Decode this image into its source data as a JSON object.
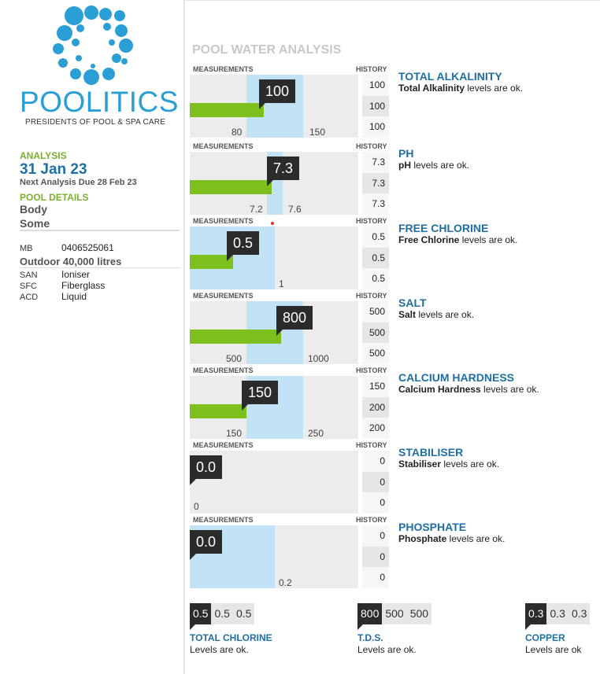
{
  "logo": {
    "wordmark": "POOLITICS",
    "tagline": "PRESIDENTS OF POOL & SPA CARE"
  },
  "sidebar": {
    "analysis_label": "ANALYSIS",
    "date": "31 Jan 23",
    "next_due": "Next Analysis Due 28 Feb 23",
    "pool_details_label": "POOL DETAILS",
    "name_line1": "Body",
    "name_line2": "Some",
    "mb_key": "MB",
    "mb_value": "0406525061",
    "pool_desc": "Outdoor 40,000 litres",
    "san_key": "SAN",
    "san_value": "Ioniser",
    "sfc_key": "SFC",
    "sfc_value": "Fiberglass",
    "acd_key": "ACD",
    "acd_value": "Liquid"
  },
  "section_title": "POOL WATER ANALYSIS",
  "headers": {
    "measurements": "MEASUREMENTS",
    "history": "HISTORY"
  },
  "rows": [
    {
      "title": "TOTAL ALKALINITY",
      "status_bold": "Total Alkalinity",
      "status_rest": " levels are ok.",
      "value": "100",
      "low": "80",
      "high": "150",
      "history": [
        "100",
        "100",
        "100"
      ]
    },
    {
      "title": "PH",
      "status_bold": "pH",
      "status_rest": " levels are ok.",
      "value": "7.3",
      "low": "7.2",
      "high": "7.6",
      "history": [
        "7.3",
        "7.3",
        "7.3"
      ]
    },
    {
      "title": "FREE CHLORINE",
      "status_bold": "Free Chlorine",
      "status_rest": " levels are ok.",
      "value": "0.5",
      "low": "",
      "high": "1",
      "history": [
        "0.5",
        "0.5",
        "0.5"
      ]
    },
    {
      "title": "SALT",
      "status_bold": "Salt",
      "status_rest": " levels are ok.",
      "value": "800",
      "low": "500",
      "high": "1000",
      "history": [
        "500",
        "500",
        "500"
      ]
    },
    {
      "title": "CALCIUM HARDNESS",
      "status_bold": "Calcium Hardness",
      "status_rest": " levels are ok.",
      "value": "150",
      "low": "150",
      "high": "250",
      "history": [
        "150",
        "200",
        "200"
      ]
    },
    {
      "title": "STABILISER",
      "status_bold": "Stabiliser",
      "status_rest": " levels are ok.",
      "value": "0.0",
      "low": "0",
      "high": "",
      "history": [
        "0",
        "0",
        "0"
      ]
    },
    {
      "title": "PHOSPHATE",
      "status_bold": "Phosphate",
      "status_rest": " levels are ok.",
      "value": "0.0",
      "low": "",
      "high": "0.2",
      "history": [
        "0",
        "0",
        "0"
      ]
    }
  ],
  "mini": [
    {
      "title": "TOTAL CHLORINE",
      "status": "Levels are ok.",
      "values": [
        "0.5",
        "0.5",
        "0.5"
      ]
    },
    {
      "title": "T.D.S.",
      "status": "Levels are ok.",
      "values": [
        "800",
        "500",
        "500"
      ]
    },
    {
      "title": "COPPER",
      "status": "Levels are ok",
      "values": [
        "0.3",
        "0.3",
        "0.3"
      ]
    }
  ],
  "colors": {
    "brand_blue": "#2a9fd6",
    "title_blue": "#1f6fa0",
    "ok_green": "#7dbf1c",
    "band_blue": "#c2e2f5",
    "bubble_dark": "#2b2b2b",
    "alert_red": "#e03030"
  }
}
